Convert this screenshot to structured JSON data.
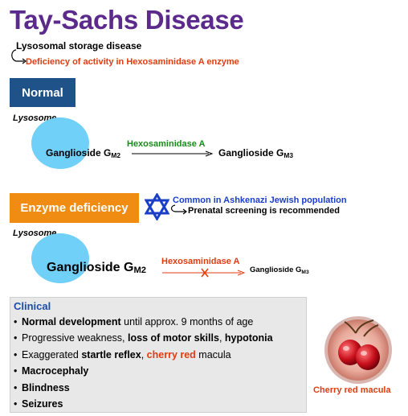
{
  "title": "Tay-Sachs Disease",
  "subtitle": "Lysosomal storage disease",
  "deficiency": "Deficiency of activity in Hexosaminidase A enzyme",
  "normal": {
    "label": "Normal",
    "lysosome_label": "Lysosome",
    "substrate_prefix": "Ganglioside G",
    "substrate_sub": "M2",
    "enzyme": "Hexosaminidase A",
    "product_prefix": "Ganglioside G",
    "product_sub": "M3"
  },
  "deficient": {
    "label": "Enzyme deficiency",
    "common_note": "Common in Ashkenazi Jewish population",
    "screening_note": "Prenatal screening is recommended",
    "lysosome_label": "Lysosome",
    "substrate_prefix": "Ganglioside G",
    "substrate_sub": "M2",
    "enzyme": "Hexosaminidase A",
    "product_prefix": "Ganglioside G",
    "product_sub": "M3"
  },
  "clinical": {
    "title": "Clinical",
    "bullet": "•",
    "items": [
      {
        "parts": [
          {
            "t": "Normal development",
            "s": "b"
          },
          {
            "t": " until approx. 9 months of age",
            "s": ""
          }
        ]
      },
      {
        "parts": [
          {
            "t": "Progressive weakness, ",
            "s": ""
          },
          {
            "t": "loss of motor skills",
            "s": "b"
          },
          {
            "t": ", ",
            "s": ""
          },
          {
            "t": "hypotonia",
            "s": "b"
          }
        ]
      },
      {
        "parts": [
          {
            "t": "Exaggerated ",
            "s": ""
          },
          {
            "t": "startle reflex",
            "s": "b"
          },
          {
            "t": ", ",
            "s": ""
          },
          {
            "t": "cherry red",
            "s": "hl"
          },
          {
            "t": " macula",
            "s": ""
          }
        ]
      },
      {
        "parts": [
          {
            "t": "Macrocephaly",
            "s": "b"
          }
        ]
      },
      {
        "parts": [
          {
            "t": "Blindness",
            "s": "b"
          }
        ]
      },
      {
        "parts": [
          {
            "t": "Seizures",
            "s": "b"
          }
        ]
      }
    ]
  },
  "cherry_caption": "Cherry red macula",
  "colors": {
    "title": "#5b2a8c",
    "normal_box": "#1e5288",
    "deficiency_box": "#f08c12",
    "lysosome": "#70d0f8",
    "highlight_red": "#e03c10",
    "enzyme_green": "#1a8a1a",
    "star_blue": "#1a3ec8"
  },
  "icons": [
    "hook-arrow-icon",
    "star-of-david-icon",
    "cherry-macula-image"
  ]
}
